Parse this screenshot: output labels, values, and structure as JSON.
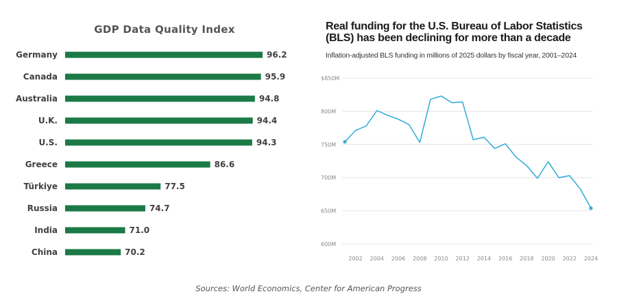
{
  "chart_data": [
    {
      "type": "bar",
      "orientation": "horizontal",
      "title": "GDP Data Quality Index",
      "categories": [
        "Germany",
        "Canada",
        "Australia",
        "U.K.",
        "U.S.",
        "Greece",
        "Türkiye",
        "Russia",
        "India",
        "China"
      ],
      "values": [
        96.2,
        95.9,
        94.8,
        94.4,
        94.3,
        86.6,
        77.5,
        74.7,
        71.0,
        70.2
      ],
      "value_labels": [
        "96.2",
        "95.9",
        "94.8",
        "94.4",
        "94.3",
        "86.6",
        "77.5",
        "74.7",
        "71.0",
        "70.2"
      ],
      "axis_min": 60,
      "axis_max": 96.2,
      "bar_color": "#1b7a46",
      "grid": false
    },
    {
      "type": "line",
      "title": "Real funding for the U.S. Bureau of Labor Statistics (BLS) has been declining for more than a decade",
      "subtitle": "Inflation-adjusted BLS funding in millions of 2025 dollars by fiscal year, 2001–2024",
      "x": [
        2001,
        2002,
        2003,
        2004,
        2005,
        2006,
        2007,
        2008,
        2009,
        2010,
        2011,
        2012,
        2013,
        2014,
        2015,
        2016,
        2017,
        2018,
        2019,
        2020,
        2021,
        2022,
        2023,
        2024
      ],
      "series": [
        {
          "values": [
            754,
            771,
            778,
            801,
            794,
            788,
            780,
            753,
            818,
            823,
            813,
            814,
            757,
            761,
            744,
            751,
            731,
            718,
            699,
            724,
            700,
            703,
            683,
            654
          ]
        }
      ],
      "xticks": [
        2002,
        2004,
        2006,
        2008,
        2010,
        2012,
        2014,
        2016,
        2018,
        2020,
        2022,
        2024
      ],
      "yticks": [
        600,
        650,
        700,
        750,
        800,
        850
      ],
      "ytick_labels": [
        "600M",
        "650M",
        "700M",
        "750M",
        "800M",
        "$850M"
      ],
      "ylim": [
        600,
        850
      ],
      "xlim": [
        2001,
        2024
      ],
      "grid": true,
      "line_color": "#3aaed8",
      "marker_points": "first-and-last"
    }
  ],
  "footer": "Sources: World Economics, Center for American Progress"
}
